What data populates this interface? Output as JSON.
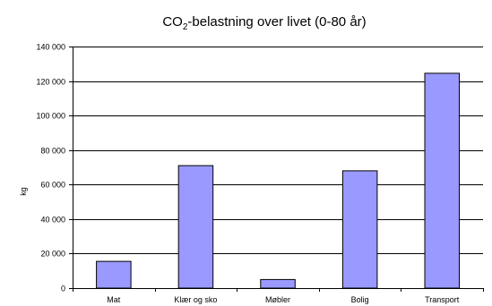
{
  "chart_data": {
    "type": "bar",
    "title": {
      "prefix": "CO",
      "subscript": "2",
      "suffix": "-belastning over livet (0-80 år)"
    },
    "xlabel": "",
    "ylabel": "kg",
    "categories": [
      "Mat",
      "Klær og sko",
      "Møbler",
      "Bolig",
      "Transport"
    ],
    "values": [
      15500,
      71000,
      5000,
      68000,
      124500
    ],
    "ylim": [
      0,
      140000
    ],
    "yticks": [
      0,
      20000,
      40000,
      60000,
      80000,
      100000,
      120000,
      140000
    ],
    "ytick_labels": [
      "0",
      "20 000",
      "40 000",
      "60 000",
      "80 000",
      "100 000",
      "120 000",
      "140 000"
    ],
    "grid": true,
    "bar_color": "#9999ff",
    "bar_edge_color": "#000000"
  }
}
